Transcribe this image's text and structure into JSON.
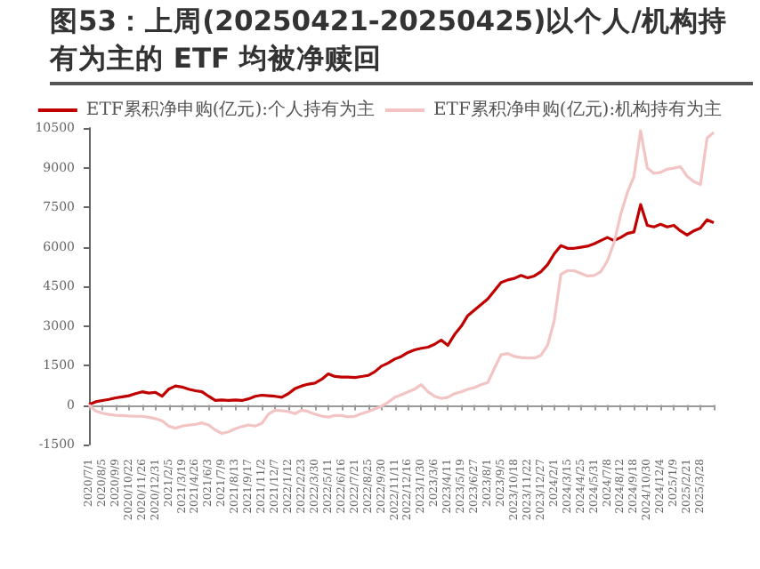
{
  "chart_data": {
    "type": "line",
    "title": "图53：上周(20250421-20250425)以个人/机构持有为主的 ETF 均被净赎回",
    "categories": [
      "2020/7/1",
      null,
      "2020/8/5",
      null,
      "2020/9/9",
      null,
      "2020/10/22",
      null,
      "2020/11/26",
      null,
      "2020/12/31",
      null,
      "2021/2/5",
      null,
      "2021/3/19",
      null,
      "2021/4/26",
      null,
      "2021/6/3",
      null,
      "2021/7/9",
      null,
      "2021/8/13",
      null,
      "2021/9/17",
      null,
      "2021/11/2",
      null,
      "2021/12/7",
      null,
      "2022/1/12",
      null,
      "2022/2/23",
      null,
      "2022/3/30",
      null,
      "2022/5/11",
      null,
      "2022/6/16",
      null,
      "2022/7/21",
      null,
      "2022/8/25",
      null,
      "2022/9/30",
      null,
      "2022/11/11",
      null,
      "2022/12/16",
      null,
      "2023/1/30",
      null,
      "2023/3/6",
      null,
      "2023/4/11",
      null,
      "2023/5/19",
      null,
      "2023/6/27",
      null,
      "2023/8/1",
      null,
      "2023/9/5",
      null,
      "2023/10/18",
      null,
      "2023/11/22",
      null,
      "2023/12/27",
      null,
      "2024/2/1",
      null,
      "2024/3/15",
      null,
      "2024/4/25",
      null,
      "2024/5/31",
      null,
      "2024/7/8",
      null,
      "2024/8/12",
      null,
      "2024/9/18",
      null,
      "2024/10/30",
      null,
      "2024/12/4",
      null,
      "2025/1/9",
      null,
      "2025/2/21",
      null,
      "2025/3/28",
      null,
      null
    ],
    "series": [
      {
        "name": "ETF累积净申购(亿元):个人持有为主",
        "color": "#c00000",
        "values": [
          20,
          120,
          170,
          210,
          270,
          310,
          350,
          430,
          500,
          450,
          480,
          330,
          600,
          720,
          680,
          600,
          540,
          500,
          330,
          170,
          190,
          170,
          190,
          170,
          230,
          330,
          370,
          350,
          330,
          290,
          430,
          620,
          720,
          790,
          830,
          970,
          1180,
          1080,
          1060,
          1060,
          1040,
          1080,
          1120,
          1260,
          1470,
          1590,
          1740,
          1840,
          1990,
          2090,
          2150,
          2190,
          2300,
          2460,
          2260,
          2670,
          2980,
          3390,
          3600,
          3810,
          4020,
          4330,
          4640,
          4740,
          4800,
          4910,
          4820,
          4890,
          5050,
          5320,
          5730,
          6040,
          5940,
          5940,
          5980,
          6020,
          6110,
          6230,
          6350,
          6230,
          6350,
          6500,
          6560,
          7600,
          6810,
          6750,
          6850,
          6750,
          6810,
          6600,
          6440,
          6600,
          6710,
          7020,
          6910
        ]
      },
      {
        "name": "ETF累积净申购(亿元):机构持有为主",
        "color": "#f2c4c4",
        "values": [
          0,
          -230,
          -310,
          -360,
          -390,
          -400,
          -420,
          -430,
          -430,
          -470,
          -520,
          -600,
          -800,
          -880,
          -800,
          -760,
          -740,
          -680,
          -760,
          -950,
          -1080,
          -1020,
          -900,
          -820,
          -760,
          -800,
          -700,
          -350,
          -200,
          -220,
          -250,
          -330,
          -200,
          -250,
          -350,
          -420,
          -460,
          -400,
          -400,
          -450,
          -430,
          -330,
          -250,
          -150,
          -50,
          100,
          290,
          390,
          500,
          600,
          770,
          500,
          330,
          250,
          290,
          430,
          500,
          600,
          660,
          770,
          850,
          1390,
          1900,
          1950,
          1840,
          1800,
          1780,
          1780,
          1880,
          2260,
          3190,
          4950,
          5090,
          5090,
          4990,
          4890,
          4910,
          5050,
          5460,
          6150,
          7220,
          8050,
          8670,
          10400,
          8980,
          8780,
          8820,
          8940,
          8980,
          9030,
          8670,
          8470,
          8360,
          10120,
          10330
        ]
      }
    ],
    "ylim": [
      -1500,
      10500
    ],
    "yticks": [
      -1500,
      0,
      1500,
      3000,
      4500,
      6000,
      7500,
      9000,
      10500
    ],
    "legend": "top",
    "line_style": "solid"
  }
}
